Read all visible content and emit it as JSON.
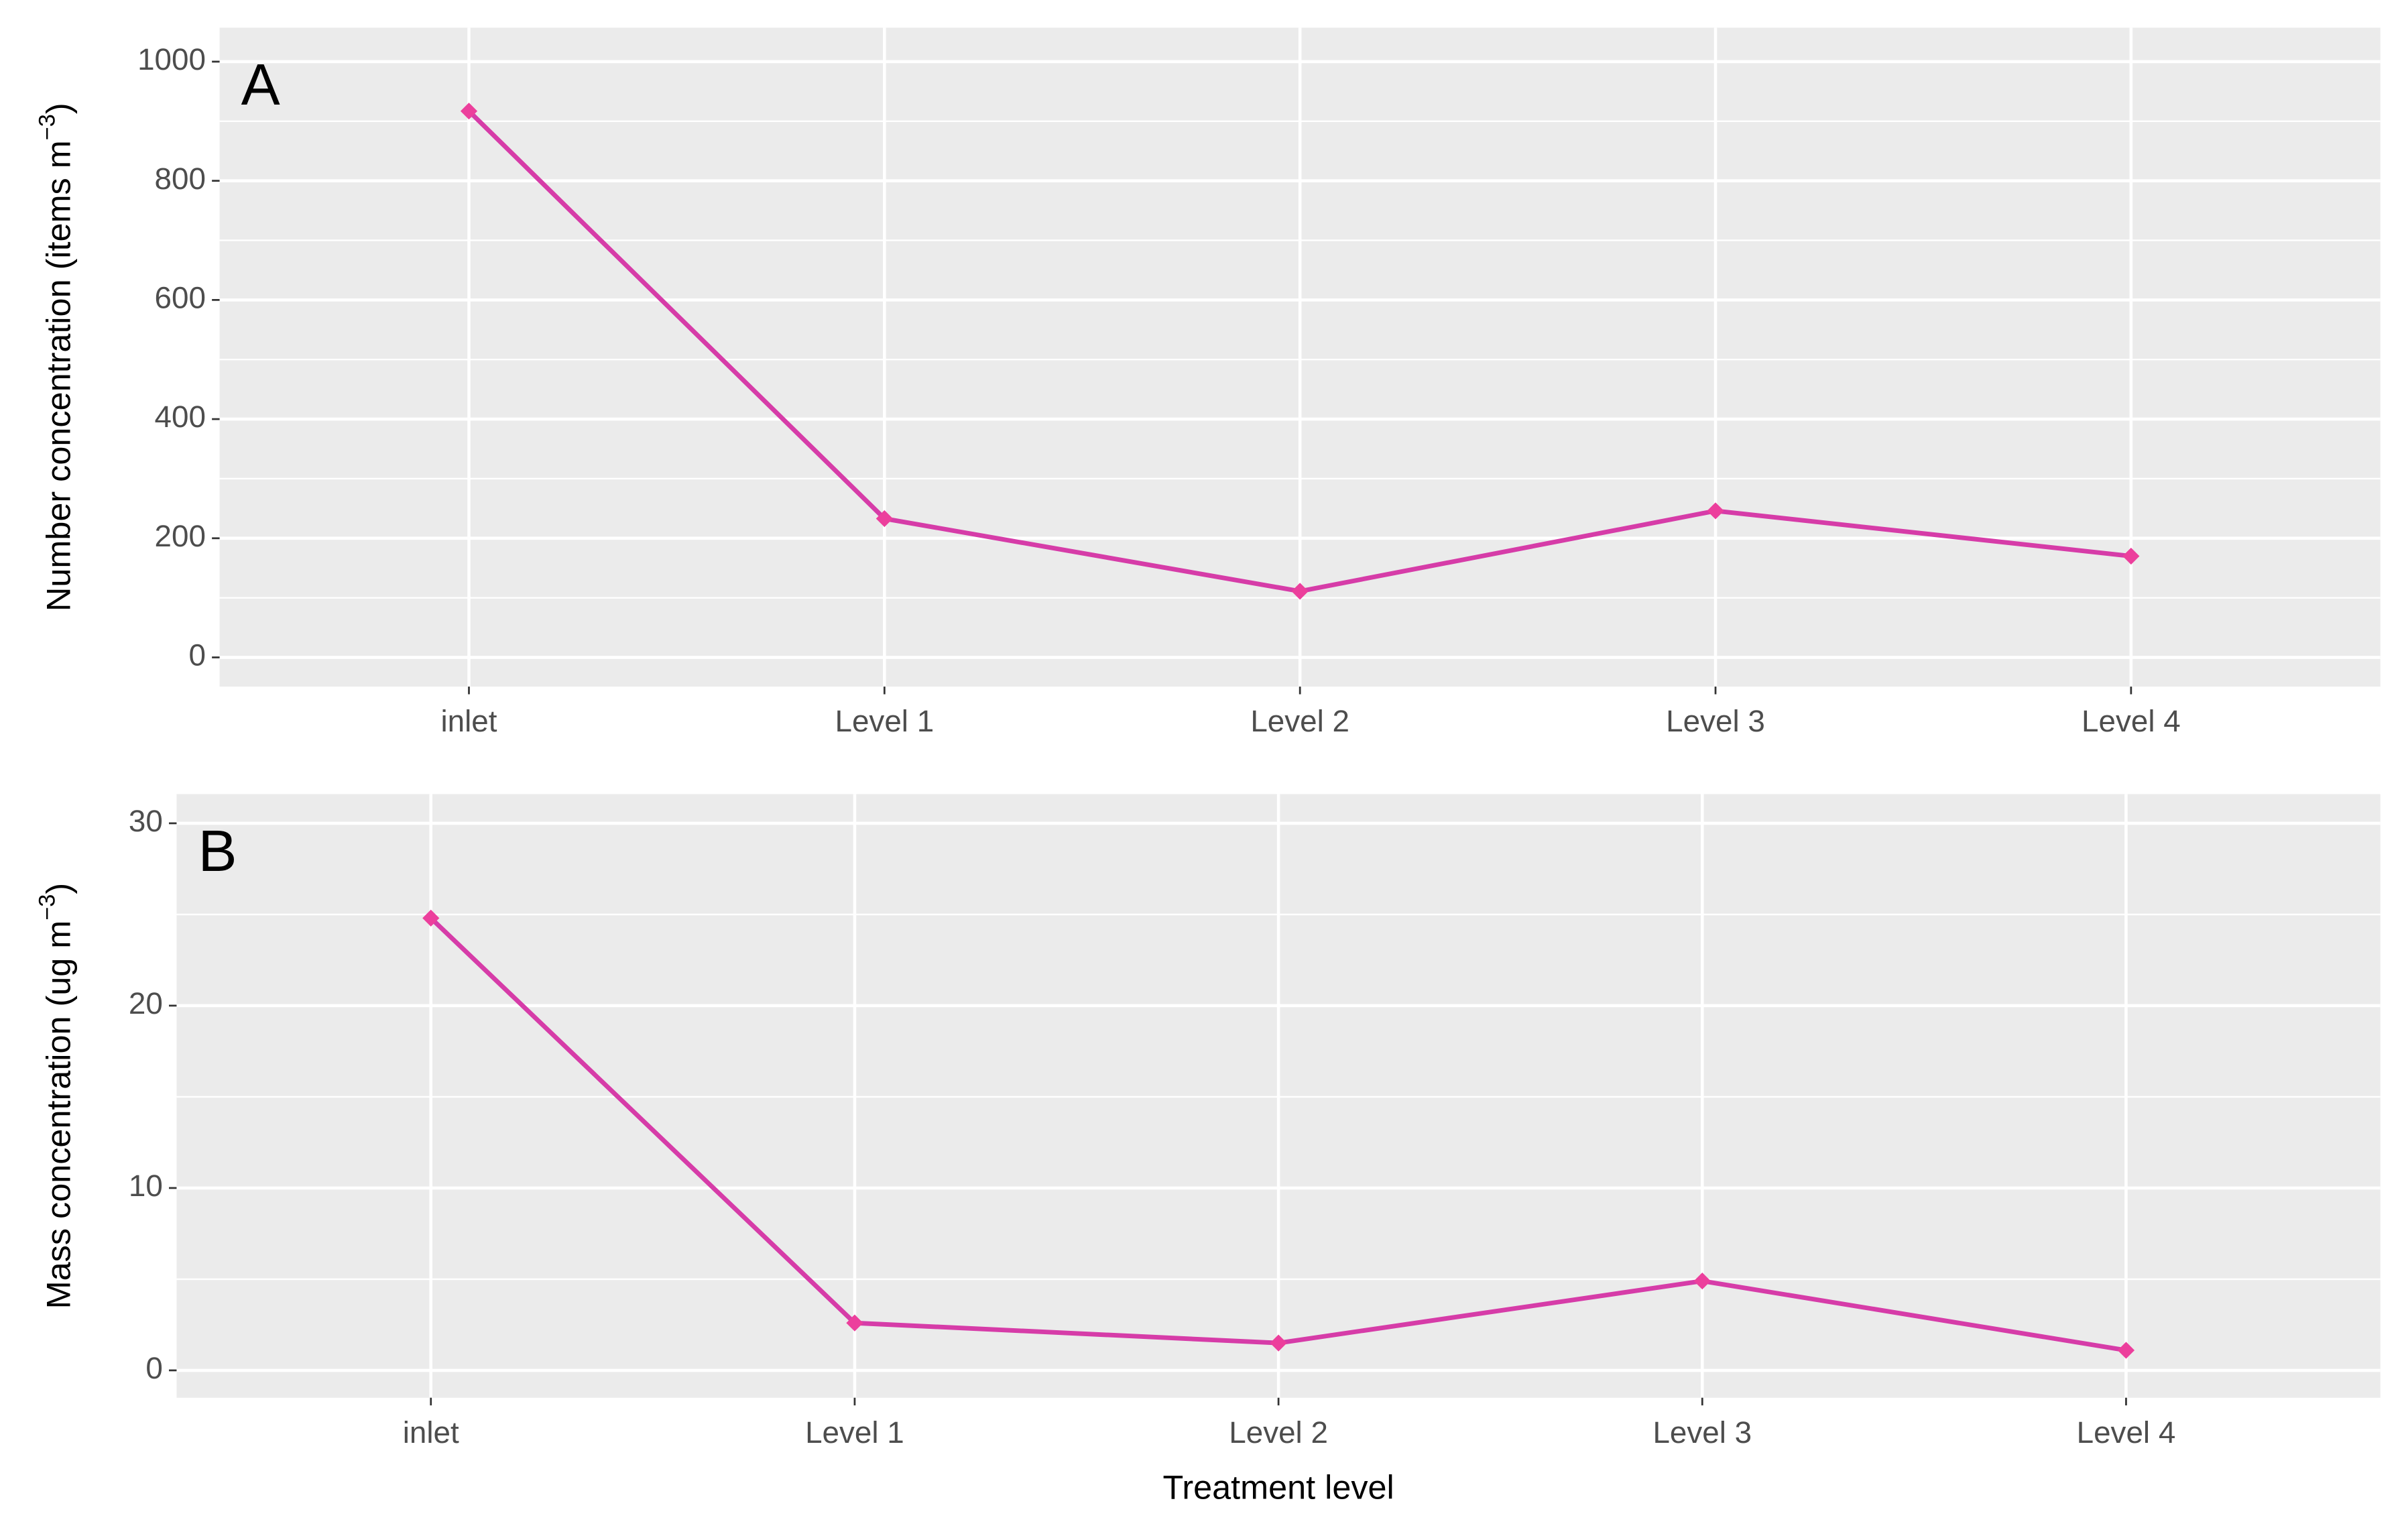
{
  "chart_data": [
    {
      "type": "line",
      "panel_label": "A",
      "y_label": "Number concentration (items m",
      "y_label_sup": "−3",
      "y_label_end": ")",
      "categories": [
        "inlet",
        "Level 1",
        "Level 2",
        "Level 3",
        "Level 4"
      ],
      "values": [
        917,
        233,
        111,
        246,
        170
      ],
      "color": "#d63ca8",
      "ylim": [
        -49,
        1057
      ],
      "yticks": [
        0,
        200,
        400,
        600,
        800,
        1000
      ],
      "grid": true
    },
    {
      "type": "line",
      "panel_label": "B",
      "y_label": "Mass concentration (ug m",
      "y_label_sup": "−3",
      "y_label_end": ")",
      "x_label": "Treatment level",
      "categories": [
        "inlet",
        "Level 1",
        "Level 2",
        "Level 3",
        "Level 4"
      ],
      "values": [
        24.8,
        2.6,
        1.5,
        4.9,
        1.1
      ],
      "color": "#d63ca8",
      "ylim": [
        -1.5,
        31.6
      ],
      "yticks": [
        0,
        10,
        20,
        30
      ],
      "grid": true
    }
  ]
}
